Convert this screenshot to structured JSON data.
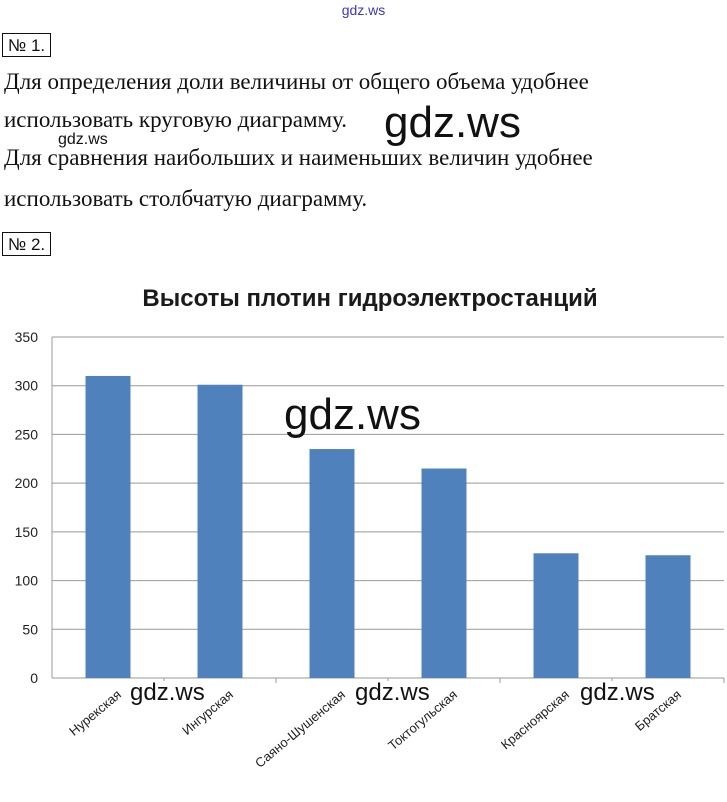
{
  "watermark_top": "gdz.ws",
  "task1": {
    "number": "№ 1.",
    "lines": [
      "Для определения доли величины от общего объема удобнее",
      "использовать круговую диаграмму.",
      "Для сравнения наибольших и наименьших величин удобнее",
      "использовать столбчатую диаграмму."
    ]
  },
  "task2": {
    "number": "№ 2."
  },
  "watermarks": {
    "big1": "gdz.ws",
    "small1": "gdz.ws",
    "big2": "gdz.ws",
    "mid1": "gdz.ws",
    "mid2": "gdz.ws",
    "mid3": "gdz.ws"
  },
  "chart_data": {
    "type": "bar",
    "title": "Высоты плотин гидроэлектростанций",
    "categories": [
      "Нурекская",
      "Ингурская",
      "Саяно-Шушенская",
      "Токтогульская",
      "Красноярская",
      "Братская"
    ],
    "values": [
      310,
      301,
      235,
      215,
      128,
      126
    ],
    "yticks": [
      0,
      50,
      100,
      150,
      200,
      250,
      300,
      350
    ],
    "ylim": [
      0,
      350
    ],
    "grid": true,
    "legend": "none",
    "bar_color": "#4f81bd",
    "grid_color": "#999999"
  }
}
